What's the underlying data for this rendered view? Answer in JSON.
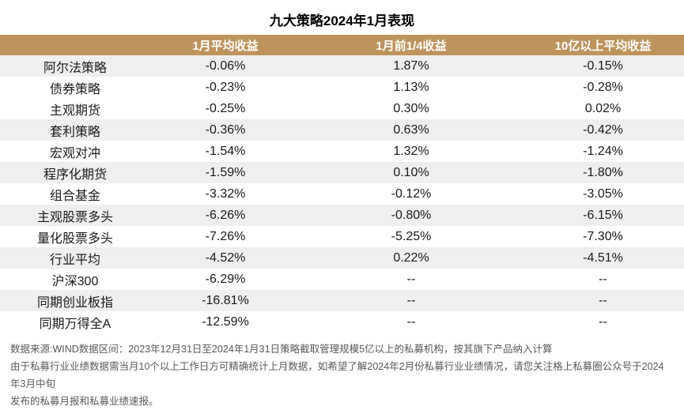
{
  "chart_data": {
    "type": "table",
    "title": "九大策略2024年1月表现",
    "columns": [
      "",
      "1月平均收益",
      "1月前1/4收益",
      "10亿以上平均收益"
    ],
    "rows": [
      {
        "cells": [
          "阿尔法策略",
          "-0.06%",
          "1.87%",
          "-0.15%"
        ],
        "striped": true
      },
      {
        "cells": [
          "债券策略",
          "-0.23%",
          "1.13%",
          "-0.28%"
        ],
        "striped": false
      },
      {
        "cells": [
          "主观期货",
          "-0.25%",
          "0.30%",
          "0.02%"
        ],
        "striped": false
      },
      {
        "cells": [
          "套利策略",
          "-0.36%",
          "0.63%",
          "-0.42%"
        ],
        "striped": true
      },
      {
        "cells": [
          "宏观对冲",
          "-1.54%",
          "1.32%",
          "-1.24%"
        ],
        "striped": false
      },
      {
        "cells": [
          "程序化期货",
          "-1.59%",
          "0.10%",
          "-1.80%"
        ],
        "striped": true
      },
      {
        "cells": [
          "组合基金",
          "-3.32%",
          "-0.12%",
          "-3.05%"
        ],
        "striped": false
      },
      {
        "cells": [
          "主观股票多头",
          "-6.26%",
          "-0.80%",
          "-6.15%"
        ],
        "striped": true
      },
      {
        "cells": [
          "量化股票多头",
          "-7.26%",
          "-5.25%",
          "-7.30%"
        ],
        "striped": false
      },
      {
        "cells": [
          "行业平均",
          "-4.52%",
          "0.22%",
          "-4.51%"
        ],
        "striped": true
      },
      {
        "cells": [
          "沪深300",
          "-6.29%",
          "--",
          "--"
        ],
        "striped": false
      },
      {
        "cells": [
          "同期创业板指",
          "-16.81%",
          "--",
          "--"
        ],
        "striped": true
      },
      {
        "cells": [
          "同期万得全A",
          "-12.59%",
          "--",
          "--"
        ],
        "striped": false
      }
    ],
    "layout": {
      "header_position": "top",
      "stripe_style": "alternating-light-gray",
      "grid": false
    }
  },
  "footer": {
    "line1": "数据来源:WIND数据区间：2023年12月31日至2024年1月31日策略截取管理规模5亿以上的私募机构，按其旗下产品纳入计算",
    "line2": "由于私募行业业绩数据需当月10个以上工作日方可精确统计上月数据，如希望了解2024年2月份私募行业业绩情况，请您关注格上私募圈公众号于2024年3月中旬",
    "line3": "发布的私募月报和私募业绩速报。"
  },
  "colors": {
    "header_bg": "#BE945C",
    "header_text": "#FFFFFF",
    "stripe": "#EFEFEF",
    "body_text": "#1A1A1A",
    "footer_text": "#595959"
  }
}
